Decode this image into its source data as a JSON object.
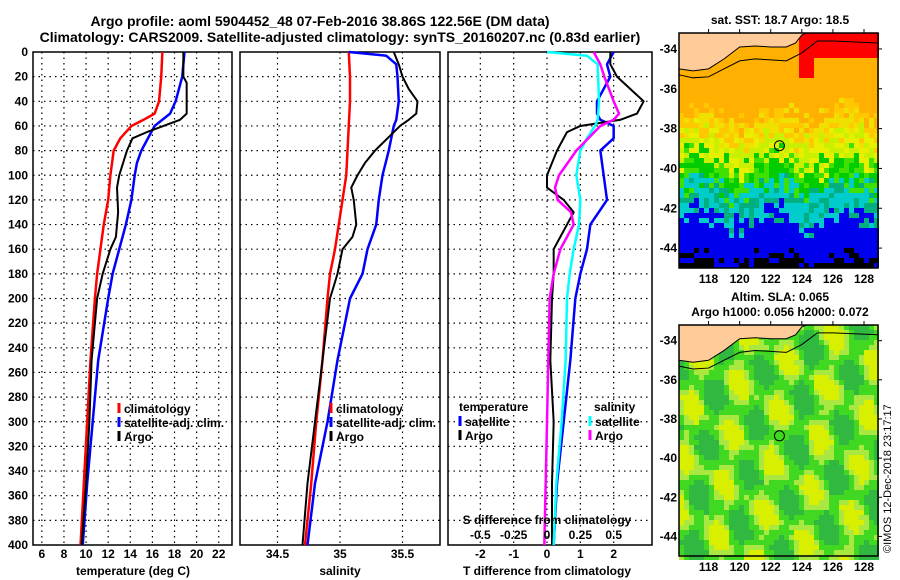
{
  "header": {
    "title_line1": "Argo profile: aoml 5904452_48 07-Feb-2016 38.86S 122.56E (DM data)",
    "title_line2": "Climatology: CARS2009. Satellite-adjusted climatology: synTS_20160207.nc (0.83d earlier)"
  },
  "colors": {
    "climatology": "#ff0000",
    "satellite": "#0000ff",
    "argo": "#000000",
    "salinity_satellite": "#00ffff",
    "salinity_argo": "#ff00ff"
  },
  "chart_data": [
    {
      "type": "line",
      "name": "temperature-profile",
      "xlabel": "temperature (deg C)",
      "ylabel": "",
      "xlim": [
        5.2,
        23.2
      ],
      "ylim": [
        400,
        0
      ],
      "xticks": [
        6,
        8,
        10,
        12,
        14,
        16,
        18,
        20,
        22
      ],
      "yticks": [
        0,
        20,
        40,
        60,
        80,
        100,
        120,
        140,
        160,
        180,
        200,
        220,
        240,
        260,
        280,
        300,
        320,
        340,
        360,
        380,
        400
      ],
      "grid": true,
      "legend": {
        "placement": "bottom-right",
        "entries": [
          "climatology",
          "satellite-adj. clim.",
          "Argo"
        ]
      },
      "series": [
        {
          "name": "climatology",
          "color_key": "climatology",
          "depth": [
            0,
            20,
            40,
            50,
            55,
            60,
            70,
            80,
            100,
            120,
            140,
            160,
            180,
            200,
            250,
            300,
            350,
            400
          ],
          "values": [
            16.9,
            16.8,
            16.6,
            16.2,
            15.2,
            14.1,
            13.1,
            12.5,
            12.2,
            12.0,
            11.6,
            11.3,
            11.0,
            10.8,
            10.4,
            10.1,
            9.8,
            9.5
          ]
        },
        {
          "name": "satellite-adj. clim.",
          "color_key": "satellite",
          "depth": [
            0,
            20,
            40,
            50,
            55,
            60,
            70,
            80,
            90,
            100,
            120,
            140,
            160,
            180,
            200,
            250,
            300,
            350,
            400
          ],
          "values": [
            18.9,
            18.7,
            18.1,
            17.6,
            16.9,
            16.2,
            15.6,
            15.0,
            14.6,
            14.4,
            14.1,
            13.6,
            13.0,
            12.4,
            12.0,
            11.1,
            10.6,
            10.1,
            9.7
          ]
        },
        {
          "name": "Argo",
          "color_key": "argo",
          "depth": [
            0,
            20,
            25,
            50,
            55,
            60,
            65,
            70,
            80,
            100,
            110,
            130,
            150,
            160,
            180,
            200,
            250,
            300,
            350,
            400
          ],
          "values": [
            18.8,
            18.8,
            19.1,
            19.1,
            18.5,
            17.0,
            15.5,
            14.2,
            13.7,
            13.0,
            12.8,
            12.9,
            12.7,
            12.2,
            11.5,
            11.0,
            10.5,
            10.3,
            10.0,
            9.6
          ]
        }
      ]
    },
    {
      "type": "line",
      "name": "salinity-profile",
      "xlabel": "salinity",
      "ylabel": "",
      "xlim": [
        34.2,
        35.8
      ],
      "ylim": [
        400,
        0
      ],
      "xticks": [
        34.5,
        35,
        35.5
      ],
      "grid": true,
      "legend": {
        "placement": "bottom-right",
        "entries": [
          "climatology",
          "satellite-adj. clim.",
          "Argo"
        ]
      },
      "series": [
        {
          "name": "climatology",
          "color_key": "climatology",
          "depth": [
            0,
            20,
            40,
            60,
            80,
            100,
            120,
            140,
            160,
            180,
            200,
            250,
            300,
            350,
            400
          ],
          "values": [
            35.07,
            35.08,
            35.08,
            35.07,
            35.06,
            35.05,
            35.02,
            34.99,
            34.96,
            34.92,
            34.9,
            34.86,
            34.81,
            34.77,
            34.72
          ]
        },
        {
          "name": "satellite-adj. clim.",
          "color_key": "satellite",
          "depth": [
            0,
            3,
            10,
            20,
            40,
            55,
            60,
            80,
            100,
            120,
            140,
            160,
            180,
            200,
            250,
            300,
            350,
            400
          ],
          "values": [
            35.07,
            35.37,
            35.45,
            35.46,
            35.47,
            35.45,
            35.43,
            35.39,
            35.34,
            35.31,
            35.29,
            35.22,
            35.18,
            35.08,
            34.98,
            34.9,
            34.8,
            34.74
          ]
        },
        {
          "name": "Argo",
          "color_key": "argo",
          "depth": [
            0,
            10,
            20,
            30,
            40,
            50,
            55,
            60,
            70,
            80,
            90,
            100,
            110,
            120,
            140,
            150,
            160,
            180,
            200,
            250,
            300,
            350,
            400
          ],
          "values": [
            35.43,
            35.47,
            35.5,
            35.55,
            35.62,
            35.61,
            35.55,
            35.48,
            35.38,
            35.28,
            35.2,
            35.14,
            35.09,
            35.11,
            35.13,
            35.1,
            35.02,
            34.98,
            34.92,
            34.86,
            34.8,
            34.74,
            34.7
          ]
        }
      ]
    },
    {
      "type": "line",
      "name": "difference-profile",
      "xlabel": "T difference from climatology",
      "xlabel2": "S difference from climatology",
      "xlim": [
        -2.97,
        3.15
      ],
      "ylim": [
        400,
        0
      ],
      "xticks": [
        -2,
        -1,
        0,
        1,
        2
      ],
      "x2ticks": [
        "-0.5",
        "-0.25",
        "0",
        "0.25",
        "0.5"
      ],
      "x2values": [
        -0.5,
        -0.25,
        0,
        0.25,
        0.5
      ],
      "x2_scale_note": "S difference axis: 0.25 psu per 1 deg C of T axis",
      "grid": true,
      "legend": {
        "placement": "bottom",
        "temperature_heading": "temperature",
        "salinity_heading": "salinity",
        "temperature_entries": [
          "satellite",
          "Argo"
        ],
        "salinity_entries": [
          "satellite",
          "Argo"
        ]
      },
      "series": [
        {
          "name": "temperature satellite",
          "color_key": "satellite",
          "axis": "T",
          "depth": [
            0,
            10,
            20,
            40,
            50,
            55,
            60,
            70,
            80,
            100,
            120,
            140,
            160,
            180,
            200,
            250,
            300,
            350,
            400
          ],
          "values": [
            2.0,
            1.8,
            1.9,
            1.5,
            1.5,
            1.6,
            2.0,
            2.0,
            1.6,
            1.7,
            1.8,
            1.3,
            1.2,
            1.0,
            0.85,
            0.7,
            0.5,
            0.3,
            0.2
          ]
        },
        {
          "name": "temperature Argo",
          "color_key": "argo",
          "axis": "T",
          "depth": [
            0,
            10,
            20,
            30,
            40,
            50,
            55,
            60,
            65,
            70,
            80,
            100,
            110,
            120,
            130,
            140,
            150,
            160,
            180,
            200,
            250,
            300,
            350,
            400
          ],
          "values": [
            1.9,
            1.9,
            2.1,
            2.5,
            2.9,
            2.7,
            2.2,
            1.0,
            0.6,
            0.5,
            0.3,
            0.0,
            0.0,
            0.5,
            0.8,
            0.6,
            0.4,
            0.2,
            0.2,
            0.15,
            0.1,
            0.2,
            0.15,
            0.15
          ]
        },
        {
          "name": "salinity satellite",
          "color_key": "salinity_satellite",
          "axis": "S",
          "depth": [
            0,
            3,
            10,
            40,
            55,
            60,
            70,
            80,
            100,
            120,
            140,
            160,
            180,
            200,
            250,
            300,
            350,
            400
          ],
          "values": [
            0.0,
            0.3,
            0.38,
            0.39,
            0.38,
            0.36,
            0.3,
            0.25,
            0.22,
            0.25,
            0.24,
            0.2,
            0.17,
            0.15,
            0.14,
            0.11,
            0.07,
            0.05
          ]
        },
        {
          "name": "salinity Argo",
          "color_key": "salinity_argo",
          "axis": "S",
          "depth": [
            0,
            10,
            20,
            40,
            50,
            55,
            60,
            70,
            80,
            100,
            110,
            120,
            130,
            140,
            150,
            160,
            180,
            200,
            250,
            300,
            350,
            400
          ],
          "values": [
            0.35,
            0.4,
            0.43,
            0.5,
            0.54,
            0.5,
            0.4,
            0.31,
            0.22,
            0.09,
            0.06,
            0.08,
            0.18,
            0.2,
            0.15,
            0.1,
            0.05,
            0.02,
            0.01,
            0.0,
            -0.01,
            -0.02
          ]
        }
      ]
    },
    {
      "type": "heatmap",
      "name": "sst-map",
      "title": "sat. SST: 18.7 Argo: 18.5",
      "xlim": [
        116.1,
        128.9
      ],
      "ylim": [
        -45,
        -33.2
      ],
      "xticks": [
        118,
        120,
        122,
        124,
        126,
        128
      ],
      "yticks": [
        -34,
        -36,
        -38,
        -40,
        -42,
        -44
      ],
      "marker": {
        "lon": 122.56,
        "lat": -38.86
      }
    },
    {
      "type": "heatmap",
      "name": "sla-map",
      "title_line1": "Altim. SLA: 0.065",
      "title_line2": "Argo h1000: 0.056 h2000: 0.072",
      "xlim": [
        116.1,
        128.9
      ],
      "ylim": [
        -45,
        -33.2
      ],
      "xticks": [
        118,
        120,
        122,
        124,
        126,
        128
      ],
      "yticks": [
        -34,
        -36,
        -38,
        -40,
        -42,
        -44
      ],
      "marker": {
        "lon": 122.56,
        "lat": -38.86
      }
    }
  ],
  "labels": {
    "temp_ytick_labels": [
      "0",
      "20",
      "40",
      "60",
      "80",
      "100",
      "120",
      "140",
      "160",
      "180",
      "200",
      "220",
      "240",
      "260",
      "280",
      "300",
      "320",
      "340",
      "360",
      "380",
      "400"
    ],
    "temp_xtick_labels": [
      "6",
      "8",
      "10",
      "12",
      "14",
      "16",
      "18",
      "20",
      "22"
    ],
    "sal_xtick_labels": [
      "34.5",
      "35",
      "35.5"
    ],
    "diff_xtick_labels": [
      "-2",
      "-1",
      "0",
      "1",
      "2"
    ],
    "map_xtick_labels": [
      "118",
      "120",
      "122",
      "124",
      "126",
      "128"
    ],
    "map_ytick_labels": [
      "-34",
      "-36",
      "-38",
      "-40",
      "-42",
      "-44"
    ]
  },
  "footer": {
    "stamp": "©IMOS 12-Dec-2018 23:17:17"
  }
}
